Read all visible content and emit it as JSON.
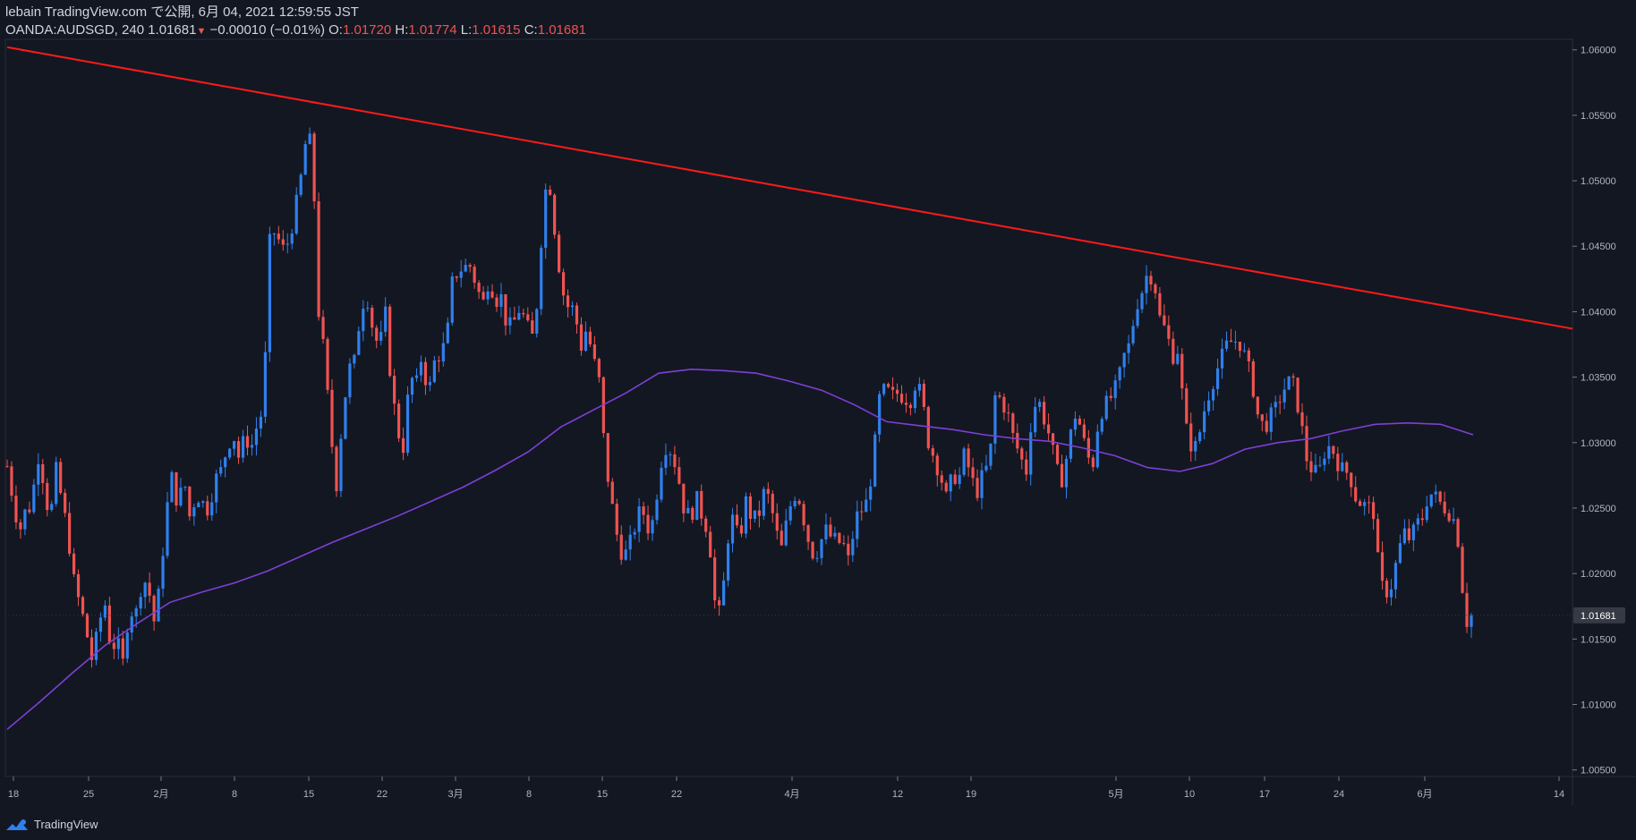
{
  "header": {
    "line1": "lebain TradingView.com で公開, 6月 04, 2021 12:59:55 JST",
    "symbol": "OANDA:AUDSGD, 240",
    "price": "1.01681",
    "change": "−0.00010 (−0.01%)",
    "o_label": "O:",
    "o_value": "1.01720",
    "h_label": "H:",
    "h_value": "1.01774",
    "l_label": "L:",
    "l_value": "1.01615",
    "c_label": "C:",
    "c_value": "1.01681"
  },
  "footer": {
    "brand": "TradingView",
    "logo_icon": "tradingview-logo-icon"
  },
  "colors": {
    "background": "#131722",
    "up": "#2f80ed",
    "down": "#ef5350",
    "trendline": "#ff1a1a",
    "ma": "#7e3fd6",
    "price_label_bg": "#363a45"
  },
  "chart_data": {
    "type": "candlestick",
    "symbol": "OANDA:AUDSGD",
    "timeframe": "240",
    "ylim": [
      1.0045,
      1.0608
    ],
    "y_ticks": [
      "1.06000",
      "1.05500",
      "1.05000",
      "1.04500",
      "1.04000",
      "1.03500",
      "1.03000",
      "1.02500",
      "1.02000",
      "1.01500",
      "1.01000",
      "1.00500"
    ],
    "y_tick_values": [
      1.06,
      1.055,
      1.05,
      1.045,
      1.04,
      1.035,
      1.03,
      1.025,
      1.02,
      1.015,
      1.01,
      1.005
    ],
    "x_ticks": [
      "18",
      "25",
      "2月",
      "8",
      "15",
      "22",
      "3月",
      "8",
      "15",
      "22",
      "4月",
      "12",
      "19",
      "5月",
      "10",
      "17",
      "24",
      "6月",
      "14"
    ],
    "last_price_label": "1.01681",
    "last_price": 1.01681,
    "price_anchors": [
      1.0282,
      1.0256,
      1.0232,
      1.0248,
      1.0252,
      1.0292,
      1.0271,
      1.0239,
      1.0279,
      1.0255,
      1.0229,
      1.0192,
      1.0175,
      1.0155,
      1.0132,
      1.0161,
      1.0178,
      1.0143,
      1.0148,
      1.0131,
      1.0175,
      1.0166,
      1.0192,
      1.0195,
      1.0162,
      1.0188,
      1.0245,
      1.0273,
      1.0252,
      1.0272,
      1.0241,
      1.0262,
      1.0254,
      1.0249,
      1.0271,
      1.0278,
      1.0295,
      1.0308,
      1.0288,
      1.0305,
      1.0296,
      1.0314,
      1.0326,
      1.0452,
      1.0463,
      1.0446,
      1.0453,
      1.0472,
      1.0497,
      1.0532,
      1.0528,
      1.0402,
      1.0366,
      1.0308,
      1.0268,
      1.0322,
      1.0356,
      1.0362,
      1.0405,
      1.0412,
      1.0385,
      1.0372,
      1.0398,
      1.0342,
      1.0309,
      1.0296,
      1.0352,
      1.0342,
      1.0368,
      1.0335,
      1.0361,
      1.0369,
      1.0376,
      1.0424,
      1.0432,
      1.0434,
      1.0435,
      1.0418,
      1.0406,
      1.0427,
      1.0409,
      1.0411,
      1.0387,
      1.0391,
      1.0403,
      1.0392,
      1.0378,
      1.0412,
      1.0492,
      1.0495,
      1.0452,
      1.0416,
      1.0403,
      1.0402,
      1.0372,
      1.0388,
      1.0365,
      1.0348,
      1.0289,
      1.0256,
      1.0228,
      1.0212,
      1.0221,
      1.0238,
      1.0251,
      1.0235,
      1.0241,
      1.0283,
      1.0298,
      1.0293,
      1.0274,
      1.0248,
      1.0243,
      1.0257,
      1.0243,
      1.0232,
      1.0178,
      1.0166,
      1.0225,
      1.0243,
      1.0223,
      1.0256,
      1.0243,
      1.0241,
      1.0261,
      1.0257,
      1.0232,
      1.0218,
      1.0246,
      1.0261,
      1.0256,
      1.0231,
      1.0216,
      1.0218,
      1.0234,
      1.0228,
      1.0224,
      1.0223,
      1.0208,
      1.0242,
      1.0248,
      1.0255,
      1.0288,
      1.0334,
      1.0341,
      1.0335,
      1.0338,
      1.0335,
      1.0332,
      1.0348,
      1.0332,
      1.0301,
      1.0288,
      1.0275,
      1.0256,
      1.0276,
      1.0272,
      1.0293,
      1.0272,
      1.0263,
      1.0276,
      1.0284,
      1.0338,
      1.0332,
      1.0322,
      1.0302,
      1.0291,
      1.0276,
      1.0324,
      1.0333,
      1.0318,
      1.0303,
      1.0278,
      1.0272,
      1.0298,
      1.0322,
      1.0312,
      1.0289,
      1.0285,
      1.0322,
      1.0328,
      1.0335,
      1.0344,
      1.0365,
      1.0375,
      1.0404,
      1.0416,
      1.0431,
      1.0424,
      1.0393,
      1.0385,
      1.0366,
      1.0372,
      1.0314,
      1.0299,
      1.0296,
      1.0321,
      1.0338,
      1.0352,
      1.0364,
      1.0375,
      1.0378,
      1.0377,
      1.0364,
      1.0348,
      1.0321,
      1.0311,
      1.0319,
      1.0326,
      1.0339,
      1.0346,
      1.0343,
      1.0317,
      1.0288,
      1.0278,
      1.0276,
      1.0294,
      1.0298,
      1.0286,
      1.0278,
      1.0277,
      1.0259,
      1.0253,
      1.0251,
      1.0247,
      1.0192,
      1.0186,
      1.0192,
      1.0216,
      1.0231,
      1.0226,
      1.0237,
      1.0243,
      1.0262,
      1.0259,
      1.0253,
      1.0249,
      1.0243,
      1.0222,
      1.0162,
      1.0168
    ],
    "trendline": {
      "start": [
        0,
        1.0602
      ],
      "end": [
        1.0,
        1.0387
      ]
    },
    "ma_anchors": [
      1.0081,
      1.0102,
      1.0124,
      1.0145,
      1.0162,
      1.0178,
      1.0186,
      1.0193,
      1.0202,
      1.0213,
      1.0224,
      1.0234,
      1.0244,
      1.0255,
      1.0266,
      1.0279,
      1.0293,
      1.0312,
      1.0325,
      1.0338,
      1.0353,
      1.0356,
      1.0355,
      1.0353,
      1.0347,
      1.034,
      1.0329,
      1.0316,
      1.0313,
      1.031,
      1.0306,
      1.0303,
      1.0301,
      1.0296,
      1.029,
      1.0281,
      1.0278,
      1.0284,
      1.0295,
      1.03,
      1.0303,
      1.0309,
      1.0314,
      1.0315,
      1.0314,
      1.0306
    ]
  }
}
